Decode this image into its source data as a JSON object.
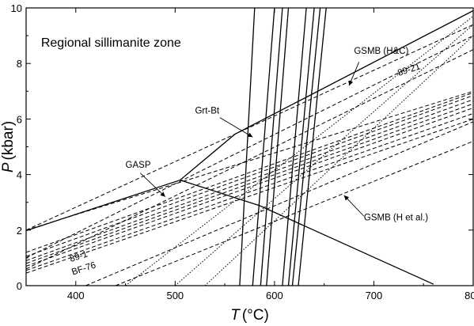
{
  "chart_data": {
    "type": "line",
    "title": "",
    "xlabel_italic": "T",
    "xlabel_unit": "(°C)",
    "ylabel_italic": "P",
    "ylabel_unit": "(kbar)",
    "xlim": [
      350,
      800
    ],
    "ylim": [
      0,
      10
    ],
    "x_ticks": [
      "400",
      "500",
      "600",
      "700",
      "800"
    ],
    "x_tick_values": [
      400,
      500,
      600,
      700,
      800
    ],
    "y_ticks": [
      "0",
      "2",
      "4",
      "6",
      "8",
      "10"
    ],
    "y_tick_values": [
      0,
      2,
      4,
      6,
      8,
      10
    ],
    "annotation_main": "Regional sillimanite zone",
    "labels": {
      "gsmb_hc": "GSMB (H&C)",
      "grt_bt": "Grt-Bt",
      "gasp": "GASP",
      "gsmb_h": "GSMB (H et al.)",
      "l89_21": "89-21",
      "l89_1": "89-1",
      "bf76": "BF-76"
    },
    "series": [
      {
        "name": "GSMB (H&C)",
        "style": "solid",
        "points": [
          [
            350,
            1.98
          ],
          [
            505,
            3.8
          ],
          [
            560,
            5.45
          ],
          [
            800,
            9.9
          ]
        ]
      },
      {
        "name": "GASP",
        "style": "solid",
        "points": [
          [
            505,
            3.8
          ],
          [
            585,
            2.88
          ],
          [
            760,
            0.05
          ]
        ]
      },
      {
        "style": "solid",
        "points": [
          [
            565,
            0
          ],
          [
            580,
            10
          ]
        ]
      },
      {
        "style": "solid",
        "points": [
          [
            578,
            0
          ],
          [
            600,
            10
          ]
        ]
      },
      {
        "style": "solid",
        "points": [
          [
            586,
            0
          ],
          [
            608,
            10
          ]
        ]
      },
      {
        "style": "solid",
        "points": [
          [
            592,
            0
          ],
          [
            614,
            10
          ]
        ]
      },
      {
        "style": "solid",
        "points": [
          [
            608,
            0
          ],
          [
            632,
            10
          ]
        ]
      },
      {
        "style": "solid",
        "points": [
          [
            614,
            0
          ],
          [
            640,
            10
          ]
        ]
      },
      {
        "style": "solid",
        "points": [
          [
            618,
            0
          ],
          [
            646,
            10
          ]
        ]
      },
      {
        "style": "solid",
        "points": [
          [
            624,
            0
          ],
          [
            652,
            10
          ]
        ]
      },
      {
        "style": "dashed",
        "points": [
          [
            350,
            2.0
          ],
          [
            800,
            9.4
          ]
        ]
      },
      {
        "style": "dashed",
        "points": [
          [
            350,
            2.0
          ],
          [
            800,
            7.0
          ]
        ]
      },
      {
        "style": "dashed",
        "points": [
          [
            350,
            1.2
          ],
          [
            800,
            6.95
          ]
        ]
      },
      {
        "style": "dashed",
        "points": [
          [
            350,
            1.05
          ],
          [
            800,
            6.85
          ]
        ]
      },
      {
        "style": "dashed",
        "points": [
          [
            350,
            0.9
          ],
          [
            800,
            6.7
          ]
        ]
      },
      {
        "style": "dashed",
        "points": [
          [
            350,
            0.8
          ],
          [
            800,
            6.55
          ]
        ]
      },
      {
        "style": "dashed",
        "points": [
          [
            350,
            0.7
          ],
          [
            800,
            6.4
          ]
        ]
      },
      {
        "style": "dashed",
        "points": [
          [
            350,
            0.55
          ],
          [
            800,
            6.2
          ]
        ]
      },
      {
        "style": "dashed",
        "points": [
          [
            350,
            0.45
          ],
          [
            800,
            6.0
          ]
        ]
      },
      {
        "style": "dashed",
        "points": [
          [
            410,
            0.0
          ],
          [
            800,
            5.9
          ]
        ]
      },
      {
        "style": "dashed",
        "points": [
          [
            440,
            0.0
          ],
          [
            800,
            5.2
          ]
        ]
      },
      {
        "style": "dotted",
        "points": [
          [
            450,
            0.0
          ],
          [
            800,
            9.7
          ]
        ]
      },
      {
        "style": "dotted",
        "points": [
          [
            500,
            0.0
          ],
          [
            800,
            9.4
          ]
        ]
      },
      {
        "style": "dotted",
        "points": [
          [
            530,
            0.0
          ],
          [
            800,
            9.0
          ]
        ]
      },
      {
        "style": "dashed",
        "points": [
          [
            350,
            1.0
          ],
          [
            800,
            9.0
          ]
        ]
      },
      {
        "style": "dashed",
        "points": [
          [
            350,
            0.6
          ],
          [
            800,
            8.5
          ]
        ]
      }
    ]
  }
}
